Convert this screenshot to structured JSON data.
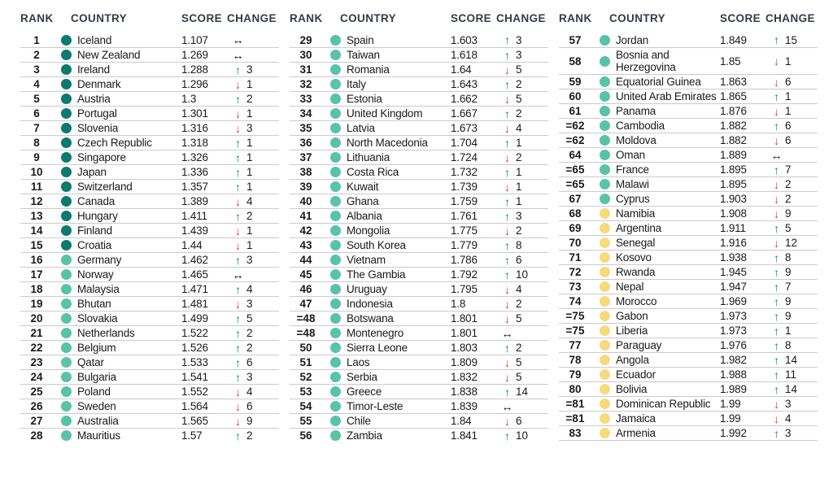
{
  "headers": {
    "rank": "RANK",
    "country": "COUNTRY",
    "score": "SCORE",
    "change": "CHANGE"
  },
  "legend": {
    "tier_colors": {
      "very-high": "#0d7a70",
      "high": "#59c3a5",
      "medium": "#f5db7e"
    },
    "arrow_colors": {
      "up": "#00847b",
      "down": "#e0362c",
      "same": "#111111"
    },
    "arrow_glyphs": {
      "up": "↑",
      "down": "↓",
      "same": "↔"
    },
    "header_text_color": "#353b49",
    "separator_color": "#cbcbcb"
  },
  "tables": [
    {
      "rows": [
        {
          "rank": "1",
          "country": "Iceland",
          "score": "1.107",
          "tier": "very-high",
          "change": {
            "dir": "same",
            "n": null
          }
        },
        {
          "rank": "2",
          "country": "New Zealand",
          "score": "1.269",
          "tier": "very-high",
          "change": {
            "dir": "same",
            "n": null
          }
        },
        {
          "rank": "3",
          "country": "Ireland",
          "score": "1.288",
          "tier": "very-high",
          "change": {
            "dir": "up",
            "n": "3"
          }
        },
        {
          "rank": "4",
          "country": "Denmark",
          "score": "1.296",
          "tier": "very-high",
          "change": {
            "dir": "down",
            "n": "1"
          }
        },
        {
          "rank": "5",
          "country": "Austria",
          "score": "1.3",
          "tier": "very-high",
          "change": {
            "dir": "up",
            "n": "2"
          }
        },
        {
          "rank": "6",
          "country": "Portugal",
          "score": "1.301",
          "tier": "very-high",
          "change": {
            "dir": "down",
            "n": "1"
          }
        },
        {
          "rank": "7",
          "country": "Slovenia",
          "score": "1.316",
          "tier": "very-high",
          "change": {
            "dir": "down",
            "n": "3"
          }
        },
        {
          "rank": "8",
          "country": "Czech Republic",
          "score": "1.318",
          "tier": "very-high",
          "change": {
            "dir": "up",
            "n": "1"
          }
        },
        {
          "rank": "9",
          "country": "Singapore",
          "score": "1.326",
          "tier": "very-high",
          "change": {
            "dir": "up",
            "n": "1"
          }
        },
        {
          "rank": "10",
          "country": "Japan",
          "score": "1.336",
          "tier": "very-high",
          "change": {
            "dir": "up",
            "n": "1"
          }
        },
        {
          "rank": "11",
          "country": "Switzerland",
          "score": "1.357",
          "tier": "very-high",
          "change": {
            "dir": "up",
            "n": "1"
          }
        },
        {
          "rank": "12",
          "country": "Canada",
          "score": "1.389",
          "tier": "very-high",
          "change": {
            "dir": "down",
            "n": "4"
          }
        },
        {
          "rank": "13",
          "country": "Hungary",
          "score": "1.411",
          "tier": "very-high",
          "change": {
            "dir": "up",
            "n": "2"
          }
        },
        {
          "rank": "14",
          "country": "Finland",
          "score": "1.439",
          "tier": "very-high",
          "change": {
            "dir": "down",
            "n": "1"
          }
        },
        {
          "rank": "15",
          "country": "Croatia",
          "score": "1.44",
          "tier": "very-high",
          "change": {
            "dir": "down",
            "n": "1"
          }
        },
        {
          "rank": "16",
          "country": "Germany",
          "score": "1.462",
          "tier": "high",
          "change": {
            "dir": "up",
            "n": "3"
          }
        },
        {
          "rank": "17",
          "country": "Norway",
          "score": "1.465",
          "tier": "high",
          "change": {
            "dir": "same",
            "n": null
          }
        },
        {
          "rank": "18",
          "country": "Malaysia",
          "score": "1.471",
          "tier": "high",
          "change": {
            "dir": "up",
            "n": "4"
          }
        },
        {
          "rank": "19",
          "country": "Bhutan",
          "score": "1.481",
          "tier": "high",
          "change": {
            "dir": "down",
            "n": "3"
          }
        },
        {
          "rank": "20",
          "country": "Slovakia",
          "score": "1.499",
          "tier": "high",
          "change": {
            "dir": "up",
            "n": "5"
          }
        },
        {
          "rank": "21",
          "country": "Netherlands",
          "score": "1.522",
          "tier": "high",
          "change": {
            "dir": "up",
            "n": "2"
          }
        },
        {
          "rank": "22",
          "country": "Belgium",
          "score": "1.526",
          "tier": "high",
          "change": {
            "dir": "up",
            "n": "2"
          }
        },
        {
          "rank": "23",
          "country": "Qatar",
          "score": "1.533",
          "tier": "high",
          "change": {
            "dir": "up",
            "n": "6"
          }
        },
        {
          "rank": "24",
          "country": "Bulgaria",
          "score": "1.541",
          "tier": "high",
          "change": {
            "dir": "up",
            "n": "3"
          }
        },
        {
          "rank": "25",
          "country": "Poland",
          "score": "1.552",
          "tier": "high",
          "change": {
            "dir": "down",
            "n": "4"
          }
        },
        {
          "rank": "26",
          "country": "Sweden",
          "score": "1.564",
          "tier": "high",
          "change": {
            "dir": "down",
            "n": "6"
          }
        },
        {
          "rank": "27",
          "country": "Australia",
          "score": "1.565",
          "tier": "high",
          "change": {
            "dir": "down",
            "n": "9"
          }
        },
        {
          "rank": "28",
          "country": "Mauritius",
          "score": "1.57",
          "tier": "high",
          "change": {
            "dir": "up",
            "n": "2"
          }
        }
      ]
    },
    {
      "rows": [
        {
          "rank": "29",
          "country": "Spain",
          "score": "1.603",
          "tier": "high",
          "change": {
            "dir": "up",
            "n": "3"
          }
        },
        {
          "rank": "30",
          "country": "Taiwan",
          "score": "1.618",
          "tier": "high",
          "change": {
            "dir": "up",
            "n": "3"
          }
        },
        {
          "rank": "31",
          "country": "Romania",
          "score": "1.64",
          "tier": "high",
          "change": {
            "dir": "down",
            "n": "5"
          }
        },
        {
          "rank": "32",
          "country": "Italy",
          "score": "1.643",
          "tier": "high",
          "change": {
            "dir": "up",
            "n": "2"
          }
        },
        {
          "rank": "33",
          "country": "Estonia",
          "score": "1.662",
          "tier": "high",
          "change": {
            "dir": "down",
            "n": "5"
          }
        },
        {
          "rank": "34",
          "country": "United Kingdom",
          "score": "1.667",
          "tier": "high",
          "change": {
            "dir": "up",
            "n": "2"
          }
        },
        {
          "rank": "35",
          "country": "Latvia",
          "score": "1.673",
          "tier": "high",
          "change": {
            "dir": "down",
            "n": "4"
          }
        },
        {
          "rank": "36",
          "country": "North Macedonia",
          "score": "1.704",
          "tier": "high",
          "change": {
            "dir": "up",
            "n": "1"
          }
        },
        {
          "rank": "37",
          "country": "Lithuania",
          "score": "1.724",
          "tier": "high",
          "change": {
            "dir": "down",
            "n": "2"
          }
        },
        {
          "rank": "38",
          "country": "Costa Rica",
          "score": "1.732",
          "tier": "high",
          "change": {
            "dir": "up",
            "n": "1"
          }
        },
        {
          "rank": "39",
          "country": "Kuwait",
          "score": "1.739",
          "tier": "high",
          "change": {
            "dir": "down",
            "n": "1"
          }
        },
        {
          "rank": "40",
          "country": "Ghana",
          "score": "1.759",
          "tier": "high",
          "change": {
            "dir": "up",
            "n": "1"
          }
        },
        {
          "rank": "41",
          "country": "Albania",
          "score": "1.761",
          "tier": "high",
          "change": {
            "dir": "up",
            "n": "3"
          }
        },
        {
          "rank": "42",
          "country": "Mongolia",
          "score": "1.775",
          "tier": "high",
          "change": {
            "dir": "down",
            "n": "2"
          }
        },
        {
          "rank": "43",
          "country": "South Korea",
          "score": "1.779",
          "tier": "high",
          "change": {
            "dir": "up",
            "n": "8"
          }
        },
        {
          "rank": "44",
          "country": "Vietnam",
          "score": "1.786",
          "tier": "high",
          "change": {
            "dir": "up",
            "n": "6"
          }
        },
        {
          "rank": "45",
          "country": "The Gambia",
          "score": "1.792",
          "tier": "high",
          "change": {
            "dir": "up",
            "n": "10"
          }
        },
        {
          "rank": "46",
          "country": "Uruguay",
          "score": "1.795",
          "tier": "high",
          "change": {
            "dir": "down",
            "n": "4"
          }
        },
        {
          "rank": "47",
          "country": "Indonesia",
          "score": "1.8",
          "tier": "high",
          "change": {
            "dir": "down",
            "n": "2"
          }
        },
        {
          "rank": "=48",
          "country": "Botswana",
          "score": "1.801",
          "tier": "high",
          "change": {
            "dir": "down",
            "n": "5"
          }
        },
        {
          "rank": "=48",
          "country": "Montenegro",
          "score": "1.801",
          "tier": "high",
          "change": {
            "dir": "same",
            "n": null
          }
        },
        {
          "rank": "50",
          "country": "Sierra Leone",
          "score": "1.803",
          "tier": "high",
          "change": {
            "dir": "up",
            "n": "2"
          }
        },
        {
          "rank": "51",
          "country": "Laos",
          "score": "1.809",
          "tier": "high",
          "change": {
            "dir": "down",
            "n": "5"
          }
        },
        {
          "rank": "52",
          "country": "Serbia",
          "score": "1.832",
          "tier": "high",
          "change": {
            "dir": "down",
            "n": "5"
          }
        },
        {
          "rank": "53",
          "country": "Greece",
          "score": "1.838",
          "tier": "high",
          "change": {
            "dir": "up",
            "n": "14"
          }
        },
        {
          "rank": "54",
          "country": "Timor-Leste",
          "score": "1.839",
          "tier": "high",
          "change": {
            "dir": "same",
            "n": null
          }
        },
        {
          "rank": "55",
          "country": "Chile",
          "score": "1.84",
          "tier": "high",
          "change": {
            "dir": "down",
            "n": "6"
          }
        },
        {
          "rank": "56",
          "country": "Zambia",
          "score": "1.841",
          "tier": "high",
          "change": {
            "dir": "up",
            "n": "10"
          }
        }
      ]
    },
    {
      "rows": [
        {
          "rank": "57",
          "country": "Jordan",
          "score": "1.849",
          "tier": "high",
          "change": {
            "dir": "up",
            "n": "15"
          }
        },
        {
          "rank": "58",
          "country": "Bosnia and Herzegovina",
          "score": "1.85",
          "tier": "high",
          "change": {
            "dir": "down",
            "n": "1"
          }
        },
        {
          "rank": "59",
          "country": "Equatorial Guinea",
          "score": "1.863",
          "tier": "high",
          "change": {
            "dir": "down",
            "n": "6"
          }
        },
        {
          "rank": "60",
          "country": "United Arab Emirates",
          "score": "1.865",
          "tier": "high",
          "change": {
            "dir": "up",
            "n": "1"
          }
        },
        {
          "rank": "61",
          "country": "Panama",
          "score": "1.876",
          "tier": "high",
          "change": {
            "dir": "down",
            "n": "1"
          }
        },
        {
          "rank": "=62",
          "country": "Cambodia",
          "score": "1.882",
          "tier": "high",
          "change": {
            "dir": "up",
            "n": "6"
          }
        },
        {
          "rank": "=62",
          "country": "Moldova",
          "score": "1.882",
          "tier": "high",
          "change": {
            "dir": "down",
            "n": "6"
          }
        },
        {
          "rank": "64",
          "country": "Oman",
          "score": "1.889",
          "tier": "high",
          "change": {
            "dir": "same",
            "n": null
          }
        },
        {
          "rank": "=65",
          "country": "France",
          "score": "1.895",
          "tier": "high",
          "change": {
            "dir": "up",
            "n": "7"
          }
        },
        {
          "rank": "=65",
          "country": "Malawi",
          "score": "1.895",
          "tier": "high",
          "change": {
            "dir": "down",
            "n": "2"
          }
        },
        {
          "rank": "67",
          "country": "Cyprus",
          "score": "1.903",
          "tier": "high",
          "change": {
            "dir": "down",
            "n": "2"
          }
        },
        {
          "rank": "68",
          "country": "Namibia",
          "score": "1.908",
          "tier": "medium",
          "change": {
            "dir": "down",
            "n": "9"
          }
        },
        {
          "rank": "69",
          "country": "Argentina",
          "score": "1.911",
          "tier": "medium",
          "change": {
            "dir": "up",
            "n": "5"
          }
        },
        {
          "rank": "70",
          "country": "Senegal",
          "score": "1.916",
          "tier": "medium",
          "change": {
            "dir": "down",
            "n": "12"
          }
        },
        {
          "rank": "71",
          "country": "Kosovo",
          "score": "1.938",
          "tier": "medium",
          "change": {
            "dir": "up",
            "n": "8"
          }
        },
        {
          "rank": "72",
          "country": "Rwanda",
          "score": "1.945",
          "tier": "medium",
          "change": {
            "dir": "up",
            "n": "9"
          }
        },
        {
          "rank": "73",
          "country": "Nepal",
          "score": "1.947",
          "tier": "medium",
          "change": {
            "dir": "up",
            "n": "7"
          }
        },
        {
          "rank": "74",
          "country": "Morocco",
          "score": "1.969",
          "tier": "medium",
          "change": {
            "dir": "up",
            "n": "9"
          }
        },
        {
          "rank": "=75",
          "country": "Gabon",
          "score": "1.973",
          "tier": "medium",
          "change": {
            "dir": "up",
            "n": "9"
          }
        },
        {
          "rank": "=75",
          "country": "Liberia",
          "score": "1.973",
          "tier": "medium",
          "change": {
            "dir": "up",
            "n": "1"
          }
        },
        {
          "rank": "77",
          "country": "Paraguay",
          "score": "1.976",
          "tier": "medium",
          "change": {
            "dir": "up",
            "n": "8"
          }
        },
        {
          "rank": "78",
          "country": "Angola",
          "score": "1.982",
          "tier": "medium",
          "change": {
            "dir": "up",
            "n": "14"
          }
        },
        {
          "rank": "79",
          "country": "Ecuador",
          "score": "1.988",
          "tier": "medium",
          "change": {
            "dir": "up",
            "n": "11"
          }
        },
        {
          "rank": "80",
          "country": "Bolivia",
          "score": "1.989",
          "tier": "medium",
          "change": {
            "dir": "up",
            "n": "14"
          }
        },
        {
          "rank": "=81",
          "country": "Dominican Republic",
          "score": "1.99",
          "tier": "medium",
          "change": {
            "dir": "down",
            "n": "3"
          }
        },
        {
          "rank": "=81",
          "country": "Jamaica",
          "score": "1.99",
          "tier": "medium",
          "change": {
            "dir": "down",
            "n": "4"
          }
        },
        {
          "rank": "83",
          "country": "Armenia",
          "score": "1.992",
          "tier": "medium",
          "change": {
            "dir": "up",
            "n": "3"
          }
        }
      ]
    }
  ]
}
